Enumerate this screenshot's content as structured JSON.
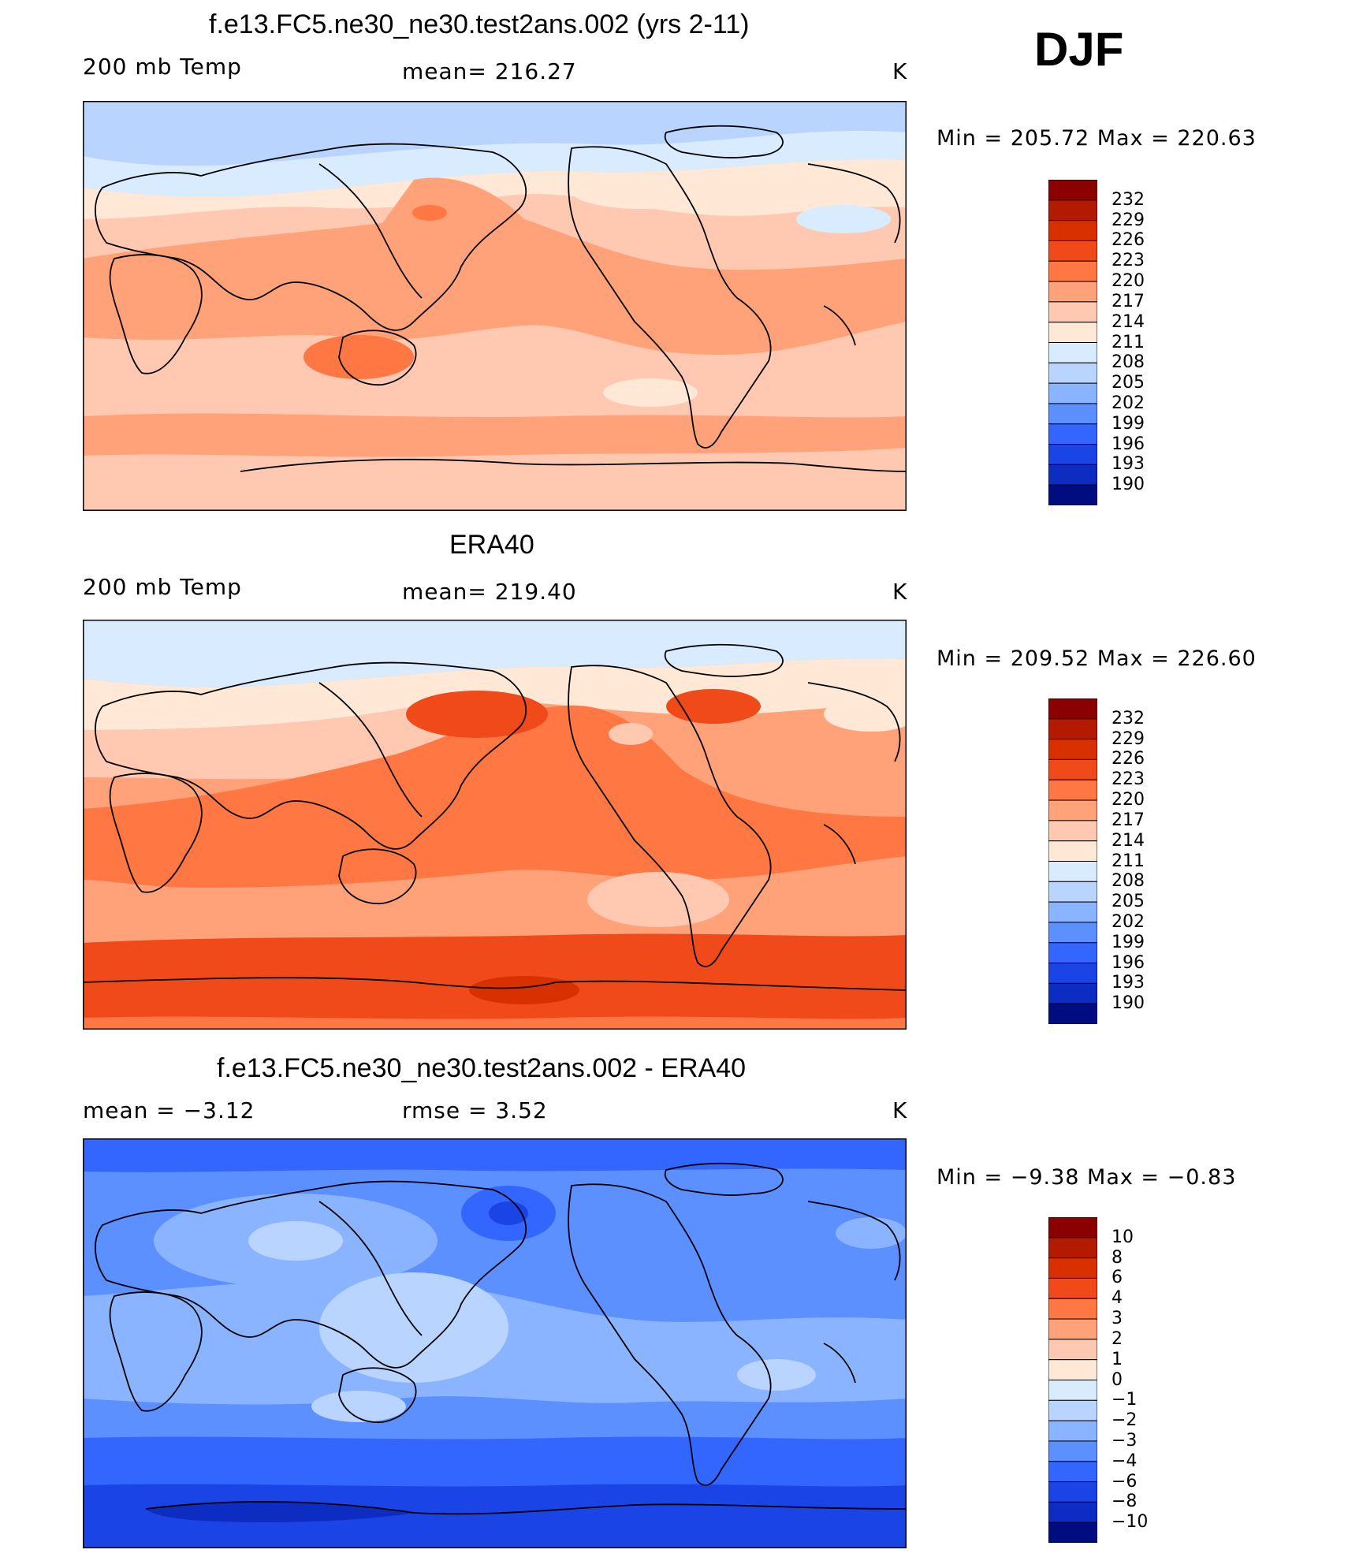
{
  "season": "DJF",
  "units_symbol": "K",
  "panels": [
    {
      "title": "f.e13.FC5.ne30_ne30.test2ans.002 (yrs 2-11)",
      "left_label": "200 mb Temp",
      "center_label": "mean=  216.27",
      "units": "K",
      "minmax": "Min  =  205.72  Max  =  220.63"
    },
    {
      "title": "ERA40",
      "left_label": "200 mb Temp",
      "center_label": "mean=  219.40",
      "units": "K",
      "minmax": "Min  =  209.52  Max  =  226.60"
    },
    {
      "title": "f.e13.FC5.ne30_ne30.test2ans.002 - ERA40",
      "left_label": "mean  =    −3.12",
      "center_label": "rmse  =     3.52",
      "units": "K",
      "minmax": "Min  =    −9.38  Max  =    −0.83"
    }
  ],
  "colorbars": {
    "temperature": {
      "labels": [
        "232",
        "229",
        "226",
        "223",
        "220",
        "217",
        "214",
        "211",
        "208",
        "205",
        "202",
        "199",
        "196",
        "193",
        "190"
      ],
      "colors": [
        "#8b0000",
        "#b31a00",
        "#d83000",
        "#f04a1a",
        "#ff7742",
        "#ffa27a",
        "#ffc8b0",
        "#ffe8d6",
        "#d8ebff",
        "#b8d4ff",
        "#8ab4ff",
        "#5c8fff",
        "#3366ff",
        "#1a44e6",
        "#0d2cc2",
        "#000c80"
      ]
    },
    "difference": {
      "labels": [
        "10",
        "8",
        "6",
        "4",
        "3",
        "2",
        "1",
        "0",
        "−1",
        "−2",
        "−3",
        "−4",
        "−6",
        "−8",
        "−10"
      ],
      "colors": [
        "#8b0000",
        "#b31a00",
        "#d83000",
        "#f04a1a",
        "#ff7742",
        "#ffa27a",
        "#ffc8b0",
        "#ffe8d6",
        "#d8ebff",
        "#b8d4ff",
        "#8ab4ff",
        "#5c8fff",
        "#3366ff",
        "#1a44e6",
        "#0d2cc2",
        "#000c80"
      ]
    }
  }
}
